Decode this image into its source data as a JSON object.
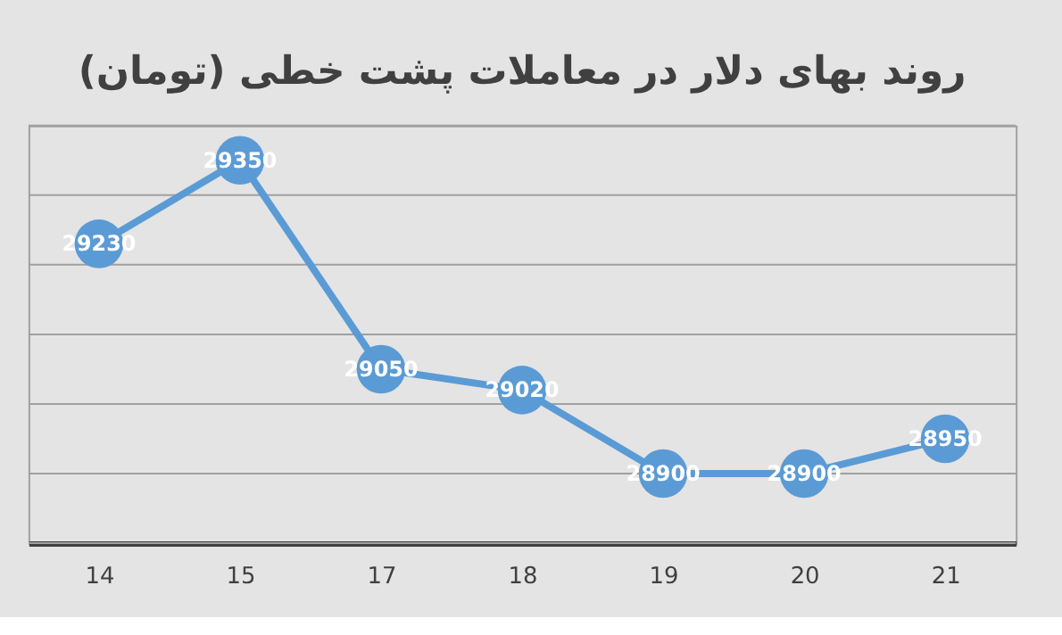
{
  "chart_data": {
    "type": "line",
    "title": "روند بهای دلار در معاملات پشت خطی (تومان)",
    "categories": [
      "14",
      "15",
      "17",
      "18",
      "19",
      "20",
      "21"
    ],
    "series": [
      {
        "color": "#5b9bd5",
        "values": [
          29230,
          29350,
          29050,
          29020,
          28900,
          28900,
          28950
        ]
      }
    ],
    "ylim": [
      28800,
      29400
    ],
    "yticks": [
      {
        "value": 28800,
        "label": null
      },
      {
        "value": 28900,
        "label": null
      },
      {
        "value": 29000,
        "label": null
      },
      {
        "value": 29100,
        "label": null
      },
      {
        "value": 29200,
        "label": null
      },
      {
        "value": 29300,
        "label": null
      },
      {
        "value": 29400,
        "label": null
      }
    ],
    "grid": "y",
    "tick_labels": "x",
    "marker": "circle",
    "line_style": "solid",
    "data_labels": true
  }
}
